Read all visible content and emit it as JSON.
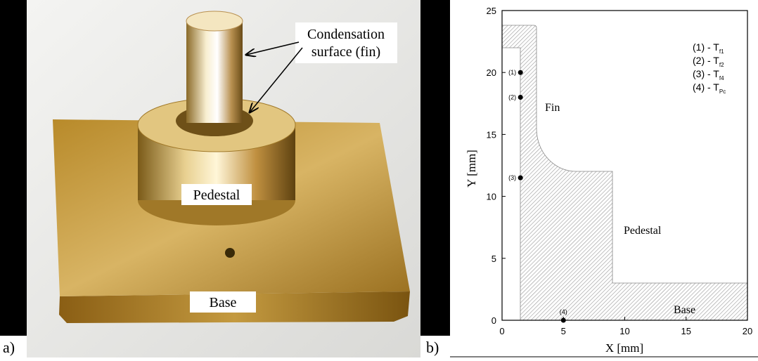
{
  "panel_a": {
    "label": "a)",
    "callout": [
      "Condensation",
      "surface (fin)"
    ],
    "pedestal": "Pedestal",
    "base": "Base"
  },
  "chart_data": {
    "type": "scatter",
    "panel_label": "b)",
    "xlabel": "X [mm]",
    "ylabel": "Y [mm]",
    "xlim": [
      0,
      20
    ],
    "ylim": [
      0,
      25
    ],
    "xticks": [
      0,
      5,
      10,
      15,
      20
    ],
    "yticks": [
      0,
      5,
      10,
      15,
      20,
      25
    ],
    "x": [
      1.5,
      1.5,
      1.5,
      5
    ],
    "values": [
      20,
      18,
      11.5,
      0
    ],
    "point_labels": [
      "(1)",
      "(2)",
      "(3)",
      "(4)"
    ],
    "color": "#000000",
    "legend": [
      {
        "text": "(1) - T",
        "sub": "f1"
      },
      {
        "text": "(2) - T",
        "sub": "f2"
      },
      {
        "text": "(3) - T",
        "sub": "f4"
      },
      {
        "text": "(4) - T",
        "sub": "Pc"
      }
    ],
    "annotations": [
      "Fin",
      "Pedestal",
      "Base"
    ]
  }
}
